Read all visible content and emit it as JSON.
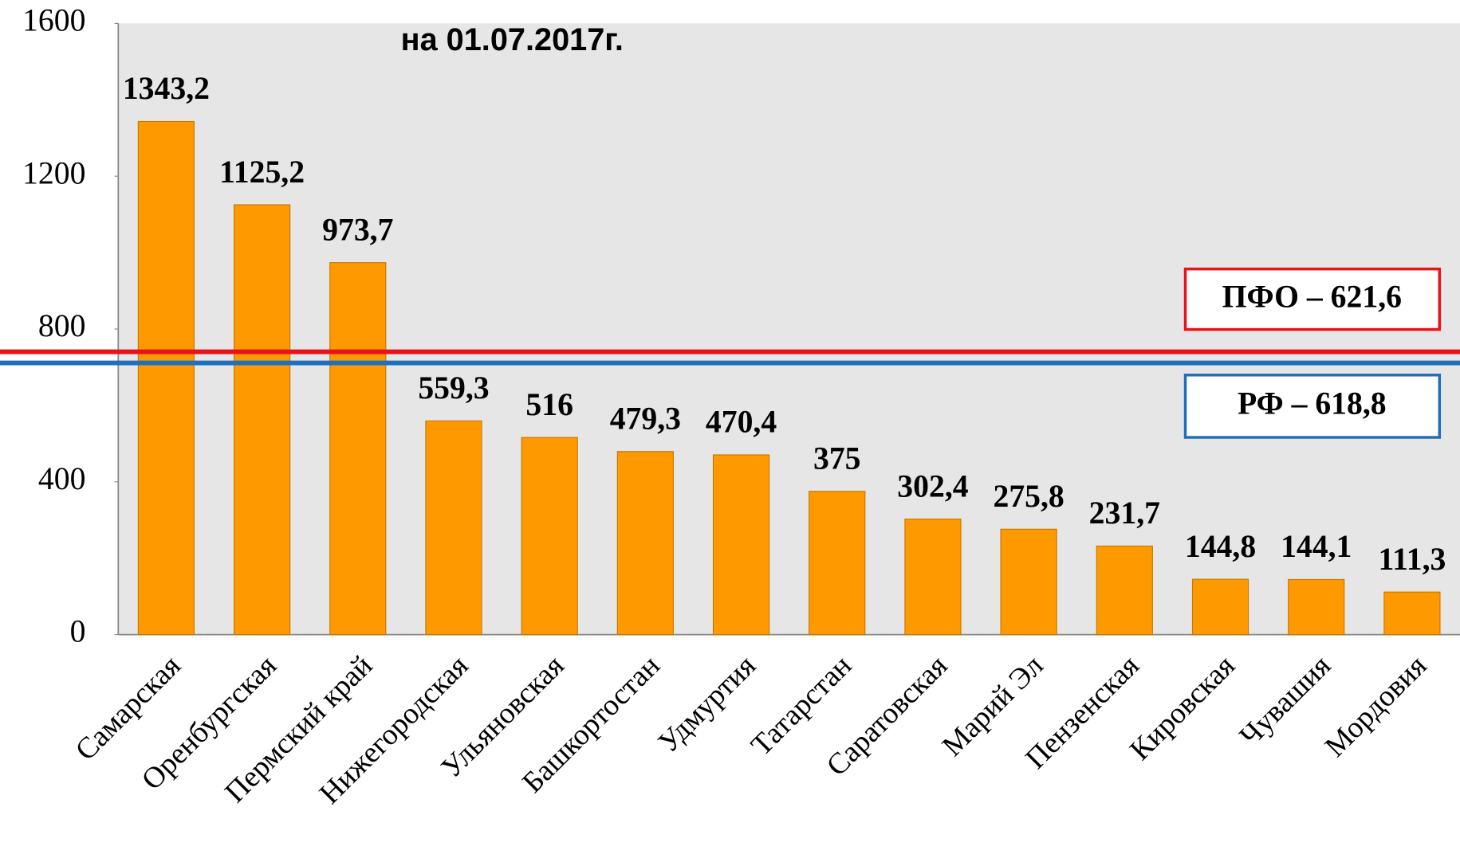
{
  "chart_data": {
    "type": "bar",
    "title": "на 01.07.2017г.",
    "categories": [
      "Самарская",
      "Оренбургская",
      "Пермский край",
      "Нижегородская",
      "Ульяновская",
      "Башкортостан",
      "Удмуртия",
      "Татарстан",
      "Саратовская",
      "Марий Эл",
      "Пензенская",
      "Кировская",
      "Чувашия",
      "Мордовия"
    ],
    "values": [
      1343.2,
      1125.2,
      973.7,
      559.3,
      516,
      479.3,
      470.4,
      375,
      302.4,
      275.8,
      231.7,
      144.8,
      144.1,
      111.3
    ],
    "value_labels": [
      "1343,2",
      "1125,2",
      "973,7",
      "559,3",
      "516",
      "479,3",
      "470,4",
      "375",
      "302,4",
      "275,8",
      "231,7",
      "144,8",
      "144,1",
      "111,3"
    ],
    "color": "#ff9900",
    "ylim": [
      0,
      1600
    ],
    "yticks": [
      0,
      400,
      800,
      1200,
      1600
    ],
    "annotations": [
      "ПФО – 621,6",
      "РФ – 618,8"
    ]
  }
}
